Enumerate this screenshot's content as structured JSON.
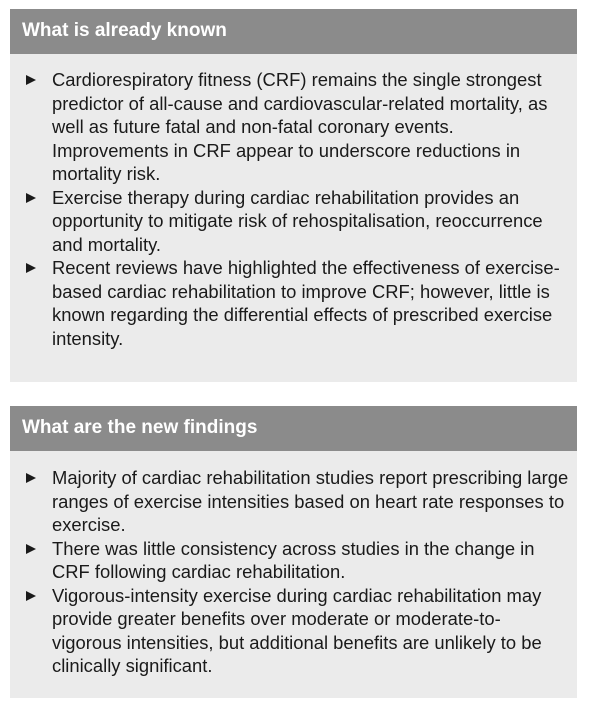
{
  "known": {
    "heading": "What is already known",
    "items": [
      "Cardiorespiratory fitness (CRF) remains the single strongest predictor of all-cause and cardiovascular-related mortality, as well as future fatal and non-fatal coronary events. Improvements in CRF appear to underscore reductions in mortality risk.",
      "Exercise therapy during cardiac rehabilitation provides an opportunity to mitigate risk of rehospitalisation, reoccurrence and mortality.",
      "Recent reviews have highlighted the effectiveness of exercise-based cardiac rehabilitation to improve CRF; however, little is known regarding the differential effects of prescribed exercise intensity."
    ]
  },
  "findings": {
    "heading": "What are the new findings",
    "items": [
      "Majority of cardiac rehabilitation studies report prescribing large ranges of exercise intensities based on heart rate responses to exercise.",
      "There was little consistency across studies in the change in CRF following cardiac rehabilitation.",
      "Vigorous-intensity exercise during cardiac rehabilitation may provide greater benefits over moderate or moderate-to-vigorous intensities, but additional benefits are unlikely to be clinically significant."
    ]
  },
  "colors": {
    "header_bg": "#8b8b8b",
    "panel_bg": "#ebebeb",
    "text": "#1a1a1a"
  },
  "icons": {
    "bullet": "right-triangle-bullet-icon"
  }
}
